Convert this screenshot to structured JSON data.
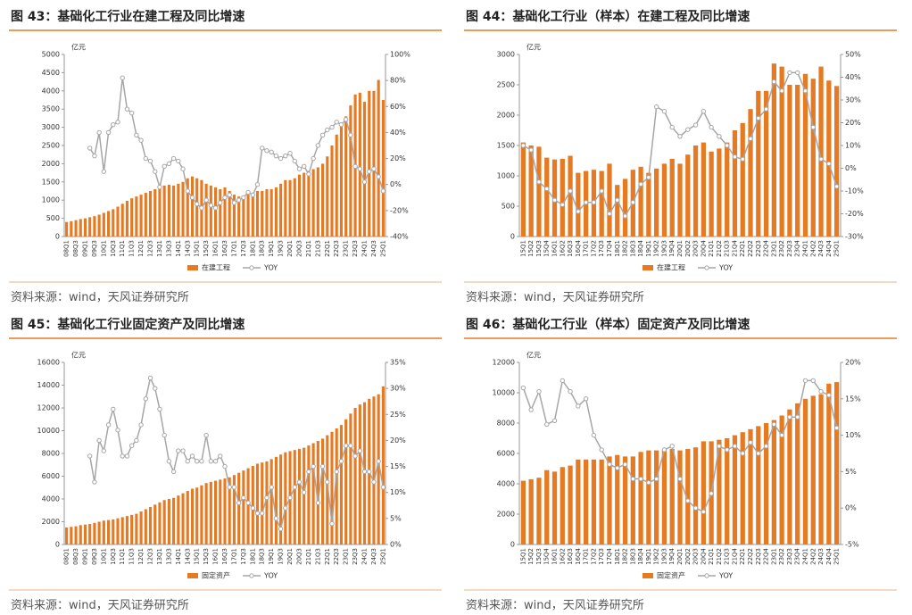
{
  "chart_data": [
    {
      "type": "bar",
      "title": "图 43：基础化工行业在建工程及同比增速",
      "unit": "亿元",
      "source": "资料来源：wind，天风证券研究所",
      "categories": [
        "08Q1",
        null,
        "08Q3",
        null,
        "09Q1",
        null,
        "09Q3",
        null,
        "10Q1",
        null,
        "10Q3",
        null,
        "11Q1",
        null,
        "11Q3",
        null,
        "12Q1",
        null,
        "12Q3",
        null,
        "13Q1",
        null,
        "13Q3",
        null,
        "14Q1",
        null,
        "14Q3",
        null,
        "15Q1",
        null,
        "15Q3",
        null,
        "16Q1",
        null,
        "16Q3",
        null,
        "17Q1",
        null,
        "17Q3",
        null,
        "18Q1",
        null,
        "18Q3",
        null,
        "19Q1",
        null,
        "19Q3",
        null,
        "20Q1",
        null,
        "20Q3",
        null,
        "21Q1",
        null,
        "21Q3",
        null,
        "22Q1",
        null,
        "22Q3",
        null,
        "23Q1",
        null,
        "23Q3",
        null,
        "24Q1",
        null,
        "24Q3",
        null,
        "25Q1"
      ],
      "series": [
        {
          "name": "在建工程",
          "color": "#e67a22",
          "values": [
            400,
            420,
            450,
            480,
            500,
            530,
            560,
            600,
            650,
            700,
            750,
            820,
            900,
            980,
            1050,
            1100,
            1150,
            1200,
            1250,
            1300,
            1350,
            1400,
            1420,
            1400,
            1450,
            1500,
            1600,
            1650,
            1600,
            1550,
            1450,
            1400,
            1350,
            1300,
            1350,
            1250,
            1150,
            1100,
            1100,
            1150,
            1200,
            1250,
            1250,
            1300,
            1300,
            1350,
            1450,
            1550,
            1550,
            1600,
            1700,
            1750,
            1800,
            1850,
            1900,
            2000,
            2200,
            2500,
            2800,
            3100,
            3300,
            3600,
            3900,
            3950,
            3700,
            4000,
            4000,
            4300,
            3750
          ]
        },
        {
          "name": "YOY",
          "color": "#a6a6a6",
          "axis": "y2",
          "values": [
            null,
            null,
            null,
            null,
            null,
            28,
            22,
            40,
            10,
            40,
            46,
            48,
            82,
            58,
            55,
            38,
            34,
            20,
            18,
            10,
            -2,
            14,
            16,
            20,
            18,
            12,
            -5,
            -10,
            -15,
            -18,
            -12,
            -16,
            -18,
            -14,
            -10,
            -8,
            -14,
            -12,
            -10,
            -6,
            -8,
            0,
            28,
            26,
            25,
            22,
            20,
            22,
            24,
            18,
            12,
            14,
            8,
            20,
            30,
            38,
            42,
            44,
            48,
            46,
            50,
            38,
            14,
            12,
            2,
            10,
            12,
            6,
            -5
          ]
        }
      ],
      "ylim": [
        0,
        5000
      ],
      "yticks": [
        0,
        500,
        1000,
        1500,
        2000,
        2500,
        3000,
        3500,
        4000,
        4500,
        5000
      ],
      "y2lim": [
        -40,
        100
      ],
      "y2ticks": [
        {
          "value": -40,
          "label": "-40%"
        },
        {
          "value": -20,
          "label": "-20%"
        },
        {
          "value": 0,
          "label": "0%"
        },
        {
          "value": 20,
          "label": "20%"
        },
        {
          "value": 40,
          "label": "40%"
        },
        {
          "value": 60,
          "label": "60%"
        },
        {
          "value": 80,
          "label": "80%"
        },
        {
          "value": 100,
          "label": "100%"
        }
      ]
    },
    {
      "type": "bar",
      "title": "图 44：基础化工行业（样本）在建工程及同比增速",
      "unit": "亿元",
      "source": "资料来源：wind，天风证券研究所",
      "categories": [
        "15Q1",
        "15Q2",
        "15Q3",
        "15Q4",
        "16Q1",
        "16Q2",
        "16Q3",
        "16Q4",
        "17Q1",
        "17Q2",
        "17Q3",
        "17Q4",
        "18Q1",
        "18Q2",
        "18Q3",
        "18Q4",
        "19Q1",
        "19Q2",
        "19Q3",
        "19Q4",
        "20Q1",
        "20Q2",
        "20Q3",
        "20Q4",
        "21Q1",
        "21Q2",
        "21Q3",
        "21Q4",
        "22Q1",
        "22Q2",
        "22Q3",
        "22Q4",
        "23Q1",
        "23Q2",
        "23Q3",
        "23Q4",
        "24Q1",
        "24Q2",
        "24Q3",
        "24Q4",
        "25Q1"
      ],
      "series": [
        {
          "name": "在建工程",
          "color": "#e67a22",
          "values": [
            1550,
            1500,
            1480,
            1300,
            1270,
            1280,
            1330,
            1050,
            1080,
            1100,
            1080,
            1200,
            850,
            950,
            1100,
            1150,
            1050,
            1120,
            1200,
            1280,
            1200,
            1350,
            1500,
            1550,
            1400,
            1450,
            1550,
            1750,
            1870,
            2100,
            2400,
            2400,
            2850,
            2800,
            2500,
            2500,
            2680,
            2600,
            2800,
            2570,
            2480
          ]
        },
        {
          "name": "YOY",
          "color": "#a6a6a6",
          "axis": "y2",
          "values": [
            10,
            8,
            -6,
            -9,
            -14,
            -16,
            -10,
            -19,
            -15,
            -15,
            -10,
            -20,
            -14,
            -21,
            -15,
            -7,
            -4,
            27,
            25,
            18,
            14,
            17,
            19,
            25,
            18,
            14,
            10,
            5,
            4,
            13,
            22,
            26,
            38,
            34,
            42,
            42,
            34,
            18,
            4,
            2,
            -8
          ]
        }
      ],
      "ylim": [
        0,
        3000
      ],
      "yticks": [
        0,
        500,
        1000,
        1500,
        2000,
        2500,
        3000
      ],
      "y2lim": [
        -30,
        50
      ],
      "y2ticks": [
        {
          "value": -30,
          "label": "-30%"
        },
        {
          "value": -20,
          "label": "-20%"
        },
        {
          "value": -10,
          "label": "-10%"
        },
        {
          "value": 0,
          "label": "0%"
        },
        {
          "value": 10,
          "label": "10%"
        },
        {
          "value": 20,
          "label": "20%"
        },
        {
          "value": 30,
          "label": "30%"
        },
        {
          "value": 40,
          "label": "40%"
        },
        {
          "value": 50,
          "label": "50%"
        }
      ]
    },
    {
      "type": "bar",
      "title": "图 45：基础化工行业固定资产及同比增速",
      "unit": "亿元",
      "source": "资料来源：wind，天风证券研究所",
      "categories": [
        "08Q1",
        null,
        "08Q3",
        null,
        "09Q1",
        null,
        "09Q3",
        null,
        "10Q1",
        null,
        "10Q3",
        null,
        "11Q1",
        null,
        "11Q3",
        null,
        "12Q1",
        null,
        "12Q3",
        null,
        "13Q1",
        null,
        "13Q3",
        null,
        "14Q1",
        null,
        "14Q3",
        null,
        "15Q1",
        null,
        "15Q3",
        null,
        "16Q1",
        null,
        "16Q3",
        null,
        "17Q1",
        null,
        "17Q3",
        null,
        "18Q1",
        null,
        "18Q3",
        null,
        "19Q1",
        null,
        "19Q3",
        null,
        "20Q1",
        null,
        "20Q3",
        null,
        "21Q1",
        null,
        "21Q3",
        null,
        "22Q1",
        null,
        "22Q3",
        null,
        "23Q1",
        null,
        "23Q3",
        null,
        "24Q1",
        null,
        "24Q3",
        null,
        "25Q1"
      ],
      "series": [
        {
          "name": "固定资产",
          "color": "#e67a22",
          "values": [
            1500,
            1550,
            1600,
            1700,
            1750,
            1800,
            1900,
            2000,
            2100,
            2150,
            2200,
            2300,
            2400,
            2500,
            2600,
            2700,
            2900,
            3100,
            3300,
            3500,
            3700,
            3900,
            4000,
            4100,
            4300,
            4500,
            4700,
            4900,
            5000,
            5200,
            5400,
            5500,
            5600,
            5700,
            5800,
            5900,
            6100,
            6300,
            6500,
            6700,
            6900,
            7100,
            7200,
            7300,
            7500,
            7700,
            7900,
            8100,
            8200,
            8300,
            8400,
            8500,
            8700,
            8900,
            9100,
            9300,
            9600,
            9900,
            10200,
            10500,
            11000,
            11500,
            12000,
            12300,
            12500,
            12800,
            13000,
            13200,
            13900
          ]
        },
        {
          "name": "YOY",
          "color": "#a6a6a6",
          "axis": "y2",
          "values": [
            null,
            null,
            null,
            null,
            null,
            17,
            12,
            20,
            18,
            23,
            26,
            22,
            17,
            17,
            19,
            20,
            23,
            28,
            32,
            30,
            26,
            21,
            16,
            14,
            18,
            18,
            16,
            17,
            16,
            16,
            21,
            16,
            16,
            17,
            15,
            11,
            11,
            8,
            9,
            8,
            7,
            6,
            6,
            9,
            11,
            5,
            3,
            7,
            9,
            11,
            12,
            10,
            14,
            15,
            8,
            15,
            12,
            4,
            14,
            16,
            19,
            19,
            17,
            18,
            14,
            14,
            12,
            16,
            11
          ]
        }
      ],
      "ylim": [
        0,
        16000
      ],
      "yticks": [
        0,
        2000,
        4000,
        6000,
        8000,
        10000,
        12000,
        14000,
        16000
      ],
      "y2lim": [
        0,
        35
      ],
      "y2ticks": [
        {
          "value": 0,
          "label": "0%"
        },
        {
          "value": 5,
          "label": "5%"
        },
        {
          "value": 10,
          "label": "10%"
        },
        {
          "value": 15,
          "label": "15%"
        },
        {
          "value": 20,
          "label": "20%"
        },
        {
          "value": 25,
          "label": "25%"
        },
        {
          "value": 30,
          "label": "30%"
        },
        {
          "value": 35,
          "label": "35%"
        }
      ]
    },
    {
      "type": "bar",
      "title": "图 46：基础化工行业（样本）固定资产及同比增速",
      "unit": "亿元",
      "source": "资料来源：wind，天风证券研究所",
      "categories": [
        "15Q1",
        "15Q2",
        "15Q3",
        "15Q4",
        "16Q1",
        "16Q2",
        "16Q3",
        "16Q4",
        "17Q1",
        "17Q2",
        "17Q3",
        "17Q4",
        "18Q1",
        "18Q2",
        "18Q3",
        "18Q4",
        "19Q1",
        "19Q2",
        "19Q3",
        "19Q4",
        "20Q1",
        "20Q2",
        "20Q3",
        "20Q4",
        "21Q1",
        "21Q2",
        "21Q3",
        "21Q4",
        "22Q1",
        "22Q2",
        "22Q3",
        "22Q4",
        "23Q1",
        "23Q2",
        "23Q3",
        "23Q4",
        "24Q1",
        "24Q2",
        "24Q3",
        "24Q4",
        "25Q1"
      ],
      "series": [
        {
          "name": "固定资产",
          "color": "#e67a22",
          "values": [
            4200,
            4300,
            4400,
            4900,
            4800,
            5100,
            5200,
            5600,
            5600,
            5600,
            5600,
            5800,
            5900,
            5800,
            5800,
            6100,
            6200,
            6200,
            6200,
            6300,
            6200,
            6300,
            6400,
            6800,
            6800,
            6900,
            7000,
            7200,
            7400,
            7600,
            7800,
            8000,
            8200,
            8500,
            8900,
            9300,
            9600,
            9800,
            9900,
            10600,
            10700
          ]
        },
        {
          "name": "YOY",
          "color": "#a6a6a6",
          "axis": "y2",
          "values": [
            16.5,
            13.5,
            16,
            11.5,
            12,
            17.5,
            16,
            14,
            15,
            10,
            8,
            6,
            5.5,
            6,
            4,
            4,
            3.5,
            4,
            8,
            8.5,
            4,
            1,
            0,
            -0.5,
            2,
            8.5,
            8,
            8.5,
            7.5,
            9,
            7.5,
            8.5,
            11.5,
            10,
            12.5,
            12.5,
            17.5,
            17.5,
            16,
            15.5,
            11
          ]
        }
      ],
      "ylim": [
        0,
        12000
      ],
      "yticks": [
        0,
        2000,
        4000,
        6000,
        8000,
        10000,
        12000
      ],
      "y2lim": [
        -5,
        20
      ],
      "y2ticks": [
        {
          "value": -5,
          "label": "-5%"
        },
        {
          "value": 0,
          "label": "0%"
        },
        {
          "value": 5,
          "label": "5%"
        },
        {
          "value": 10,
          "label": "10%"
        },
        {
          "value": 15,
          "label": "15%"
        },
        {
          "value": 20,
          "label": "20%"
        }
      ]
    }
  ]
}
